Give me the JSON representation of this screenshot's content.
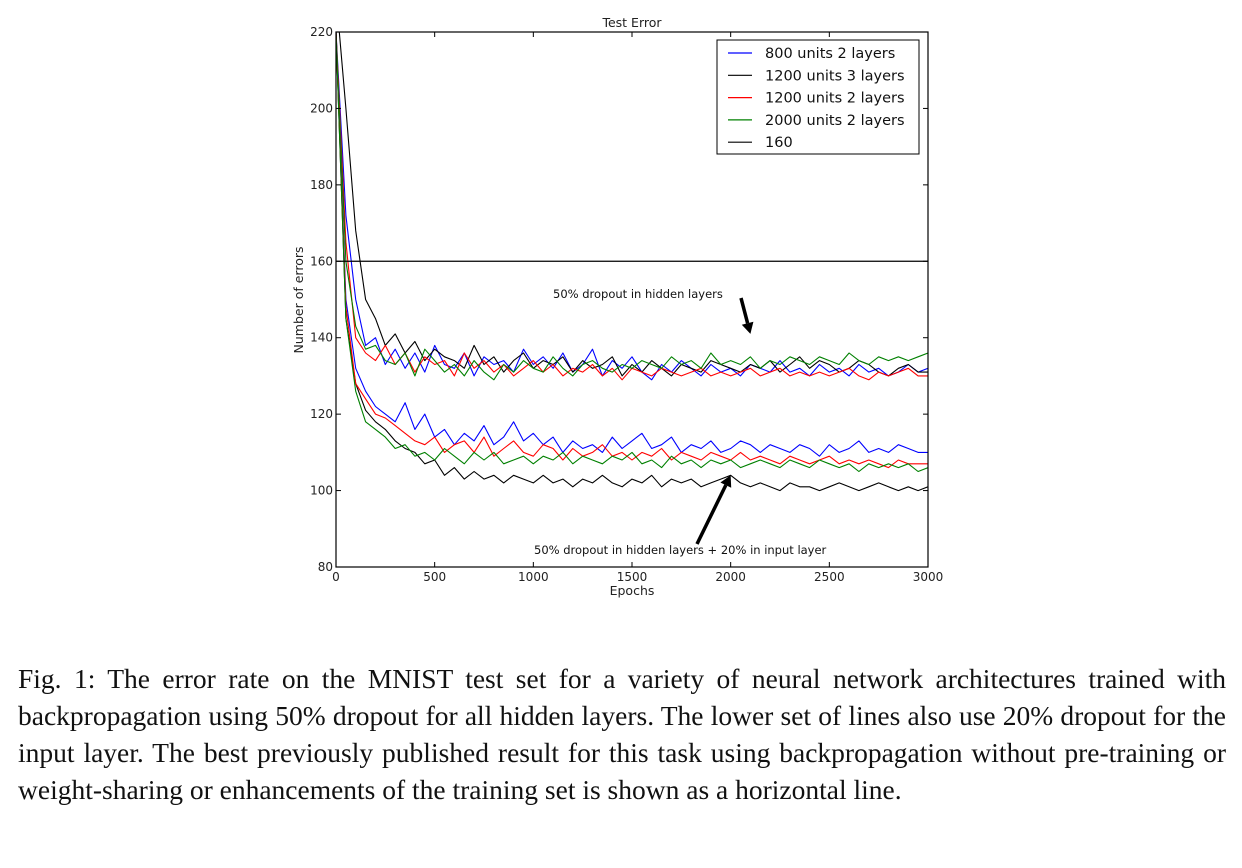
{
  "chart_data": {
    "type": "line",
    "title": "Test Error",
    "xlabel": "Epochs",
    "ylabel": "Number of errors",
    "xlim": [
      0,
      3000
    ],
    "ylim": [
      80,
      220
    ],
    "xticks": [
      0,
      500,
      1000,
      1500,
      2000,
      2500,
      3000
    ],
    "xtick_labels": [
      "0",
      "500",
      "1000",
      "1500",
      "2000",
      "2500",
      "3000"
    ],
    "yticks": [
      80,
      100,
      120,
      140,
      160,
      180,
      200,
      220
    ],
    "ytick_labels": [
      "80",
      "100",
      "120",
      "140",
      "160",
      "180",
      "200",
      "220"
    ],
    "grid": false,
    "legend_position": "top-right",
    "legend": [
      {
        "label": "800 units 2 layers",
        "color": "#0000ff"
      },
      {
        "label": "1200 units 3 layers",
        "color": "#000000"
      },
      {
        "label": "1200 units 2 layers",
        "color": "#ff0000"
      },
      {
        "label": "2000 units 2 layers",
        "color": "#008000"
      },
      {
        "label": "160",
        "color": "#000000"
      }
    ],
    "x": [
      0,
      50,
      100,
      150,
      200,
      250,
      300,
      350,
      400,
      450,
      500,
      550,
      600,
      650,
      700,
      750,
      800,
      850,
      900,
      950,
      1000,
      1050,
      1100,
      1150,
      1200,
      1250,
      1300,
      1350,
      1400,
      1450,
      1500,
      1550,
      1600,
      1650,
      1700,
      1750,
      1800,
      1850,
      1900,
      1950,
      2000,
      2050,
      2100,
      2150,
      2200,
      2250,
      2300,
      2350,
      2400,
      2450,
      2500,
      2550,
      2600,
      2650,
      2700,
      2750,
      2800,
      2850,
      2900,
      2950,
      3000
    ],
    "series": [
      {
        "name": "800 units 2 layers",
        "group": "hidden-dropout",
        "color": "#0000ff",
        "values": [
          220,
          172,
          150,
          138,
          140,
          133,
          137,
          132,
          136,
          131,
          138,
          133,
          132,
          136,
          130,
          135,
          133,
          134,
          131,
          137,
          133,
          135,
          132,
          136,
          131,
          133,
          137,
          130,
          134,
          132,
          135,
          131,
          129,
          133,
          131,
          134,
          132,
          130,
          133,
          131,
          132,
          130,
          133,
          132,
          131,
          134,
          131,
          132,
          130,
          133,
          131,
          132,
          130,
          133,
          131,
          132,
          130,
          131,
          133,
          131,
          132
        ]
      },
      {
        "name": "1200 units 3 layers",
        "group": "hidden-dropout",
        "color": "#000000",
        "values": [
          230,
          200,
          168,
          150,
          145,
          138,
          141,
          136,
          139,
          134,
          137,
          135,
          134,
          132,
          138,
          133,
          135,
          131,
          134,
          136,
          132,
          134,
          133,
          135,
          131,
          134,
          132,
          133,
          135,
          130,
          133,
          131,
          134,
          132,
          130,
          133,
          132,
          131,
          134,
          133,
          132,
          131,
          133,
          132,
          134,
          131,
          133,
          135,
          132,
          134,
          133,
          131,
          132,
          134,
          133,
          131,
          130,
          132,
          133,
          131,
          131
        ]
      },
      {
        "name": "1200 units 2 layers",
        "group": "hidden-dropout",
        "color": "#ff0000",
        "values": [
          220,
          165,
          140,
          136,
          134,
          138,
          133,
          136,
          131,
          135,
          133,
          134,
          130,
          136,
          132,
          134,
          131,
          133,
          130,
          132,
          134,
          131,
          133,
          130,
          132,
          131,
          133,
          130,
          132,
          129,
          132,
          131,
          130,
          132,
          131,
          130,
          131,
          132,
          130,
          131,
          130,
          131,
          132,
          130,
          131,
          132,
          130,
          131,
          130,
          131,
          130,
          131,
          132,
          130,
          129,
          131,
          130,
          131,
          132,
          130,
          130
        ]
      },
      {
        "name": "2000 units 2 layers",
        "group": "hidden-dropout",
        "color": "#008000",
        "values": [
          220,
          160,
          143,
          137,
          138,
          134,
          133,
          136,
          130,
          137,
          134,
          131,
          133,
          130,
          134,
          131,
          129,
          133,
          131,
          134,
          132,
          131,
          135,
          132,
          130,
          133,
          134,
          132,
          131,
          133,
          132,
          134,
          133,
          132,
          135,
          133,
          134,
          132,
          136,
          133,
          134,
          133,
          135,
          132,
          134,
          133,
          135,
          134,
          133,
          135,
          134,
          133,
          136,
          134,
          133,
          135,
          134,
          135,
          134,
          135,
          136
        ]
      },
      {
        "name": "800 units 2 layers",
        "group": "hidden+input-dropout",
        "color": "#0000ff",
        "values": [
          220,
          150,
          132,
          126,
          122,
          120,
          118,
          123,
          116,
          120,
          114,
          116,
          112,
          115,
          113,
          117,
          112,
          114,
          118,
          113,
          115,
          112,
          114,
          110,
          113,
          111,
          112,
          110,
          114,
          111,
          113,
          115,
          111,
          112,
          114,
          110,
          112,
          111,
          113,
          110,
          111,
          113,
          112,
          110,
          112,
          111,
          110,
          112,
          111,
          109,
          112,
          110,
          111,
          113,
          110,
          111,
          110,
          112,
          111,
          110,
          110
        ]
      },
      {
        "name": "1200 units 3 layers",
        "group": "hidden+input-dropout",
        "color": "#000000",
        "values": [
          220,
          145,
          128,
          121,
          118,
          116,
          113,
          111,
          110,
          107,
          108,
          104,
          106,
          103,
          105,
          103,
          104,
          102,
          104,
          103,
          102,
          104,
          102,
          103,
          101,
          103,
          102,
          104,
          102,
          101,
          103,
          102,
          104,
          101,
          103,
          102,
          103,
          101,
          102,
          103,
          104,
          102,
          101,
          102,
          101,
          100,
          102,
          101,
          101,
          100,
          101,
          102,
          101,
          100,
          101,
          102,
          101,
          100,
          101,
          100,
          101
        ]
      },
      {
        "name": "1200 units 2 layers",
        "group": "hidden+input-dropout",
        "color": "#ff0000",
        "values": [
          220,
          148,
          128,
          124,
          120,
          119,
          117,
          115,
          113,
          112,
          114,
          110,
          112,
          113,
          110,
          114,
          109,
          111,
          113,
          110,
          109,
          112,
          111,
          108,
          111,
          109,
          110,
          112,
          109,
          110,
          108,
          110,
          109,
          111,
          108,
          110,
          109,
          108,
          110,
          109,
          108,
          110,
          108,
          109,
          108,
          107,
          109,
          108,
          107,
          108,
          109,
          107,
          108,
          107,
          108,
          107,
          106,
          108,
          107,
          107,
          107
        ]
      },
      {
        "name": "2000 units 2 layers",
        "group": "hidden+input-dropout",
        "color": "#008000",
        "values": [
          220,
          145,
          126,
          118,
          116,
          114,
          111,
          112,
          109,
          110,
          108,
          111,
          109,
          107,
          110,
          108,
          110,
          107,
          108,
          109,
          107,
          109,
          108,
          110,
          107,
          109,
          108,
          107,
          109,
          108,
          110,
          107,
          108,
          106,
          109,
          107,
          108,
          106,
          108,
          107,
          108,
          106,
          107,
          108,
          107,
          106,
          108,
          107,
          106,
          108,
          107,
          106,
          107,
          105,
          107,
          106,
          107,
          106,
          107,
          105,
          106
        ]
      },
      {
        "name": "160",
        "group": "baseline",
        "color": "#000000",
        "constant": 160
      }
    ],
    "annotations": [
      {
        "text": "50% dropout in hidden layers",
        "points_to": {
          "x": 2100,
          "y": 141
        }
      },
      {
        "text": "50% dropout in hidden layers + 20% in input layer",
        "points_to": {
          "x": 2000,
          "y": 104
        }
      }
    ]
  },
  "caption": "Fig. 1: The error rate on the MNIST test set for a variety of neural network architectures trained with backpropagation using 50% dropout for all hidden layers.  The lower set of lines also use 20% dropout for the input layer.  The best previously published result for this task using backpropagation without pre-training or weight-sharing or enhancements of the training set is shown as a horizontal line."
}
